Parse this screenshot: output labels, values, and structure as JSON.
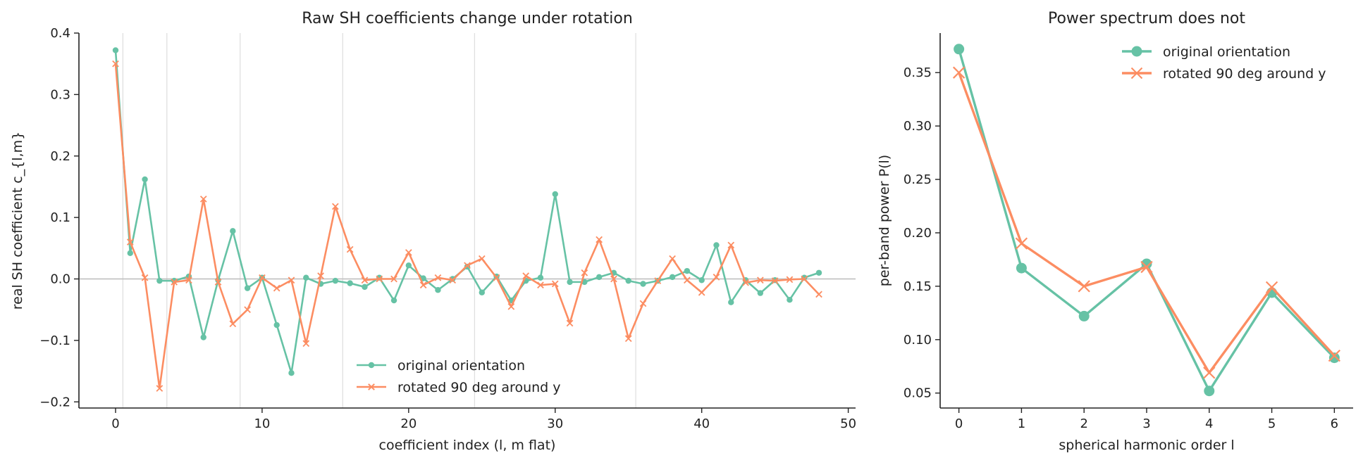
{
  "colors": {
    "original": "#66c2a5",
    "rotated": "#fc8d62",
    "zero_line": "#bbbbbb",
    "band_line": "#e0e0e0",
    "axis": "#222222"
  },
  "chart_data": [
    {
      "type": "line",
      "title": "Raw SH coefficients change under rotation",
      "xlabel": "coefficient index (l, m flat)",
      "ylabel": "real SH coefficient c_{l,m}",
      "xlim": [
        -2.5,
        50.5
      ],
      "ylim": [
        -0.21,
        0.4
      ],
      "xticks": [
        0,
        10,
        20,
        30,
        40,
        50
      ],
      "xtick_labels": [
        "0",
        "10",
        "20",
        "30",
        "40",
        "50"
      ],
      "yticks": [
        -0.2,
        -0.1,
        0.0,
        0.1,
        0.2,
        0.3,
        0.4
      ],
      "ytick_labels": [
        "−0.2",
        "−0.1",
        "0.0",
        "0.1",
        "0.2",
        "0.3",
        "0.4"
      ],
      "band_boundaries": [
        0.5,
        3.5,
        8.5,
        15.5,
        24.5,
        35.5
      ],
      "zero_line": true,
      "legend_position": "bottom-center",
      "series": [
        {
          "name": "original orientation",
          "marker": "circle",
          "x": [
            0,
            1,
            2,
            3,
            4,
            5,
            6,
            7,
            8,
            9,
            10,
            11,
            12,
            13,
            14,
            15,
            16,
            17,
            18,
            19,
            20,
            21,
            22,
            23,
            24,
            25,
            26,
            27,
            28,
            29,
            30,
            31,
            32,
            33,
            34,
            35,
            36,
            37,
            38,
            39,
            40,
            41,
            42,
            43,
            44,
            45,
            46,
            47,
            48
          ],
          "values": [
            0.372,
            0.042,
            0.162,
            -0.003,
            -0.003,
            0.004,
            -0.095,
            -0.002,
            0.078,
            -0.015,
            0.002,
            -0.075,
            -0.153,
            0.002,
            -0.008,
            -0.003,
            -0.007,
            -0.013,
            0.002,
            -0.035,
            0.022,
            0.001,
            -0.018,
            0.0,
            0.02,
            -0.022,
            0.004,
            -0.035,
            -0.003,
            0.002,
            0.138,
            -0.005,
            -0.005,
            0.003,
            0.01,
            -0.003,
            -0.008,
            -0.003,
            0.003,
            0.013,
            -0.002,
            0.055,
            -0.038,
            -0.002,
            -0.023,
            -0.002,
            -0.034,
            0.002,
            0.01
          ]
        },
        {
          "name": "rotated 90 deg around y",
          "marker": "x",
          "x": [
            0,
            1,
            2,
            3,
            4,
            5,
            6,
            7,
            8,
            9,
            10,
            11,
            12,
            13,
            14,
            15,
            16,
            17,
            18,
            19,
            20,
            21,
            22,
            23,
            24,
            25,
            26,
            27,
            28,
            29,
            30,
            31,
            32,
            33,
            34,
            35,
            36,
            37,
            38,
            39,
            40,
            41,
            42,
            43,
            44,
            45,
            46,
            47,
            48
          ],
          "values": [
            0.35,
            0.06,
            0.002,
            -0.178,
            -0.005,
            -0.002,
            0.13,
            -0.005,
            -0.073,
            -0.05,
            0.002,
            -0.015,
            -0.002,
            -0.105,
            0.005,
            0.118,
            0.048,
            -0.002,
            0.0,
            0.0,
            0.043,
            -0.01,
            0.002,
            -0.002,
            0.022,
            0.033,
            0.002,
            -0.045,
            0.005,
            -0.01,
            -0.008,
            -0.072,
            0.01,
            0.064,
            0.0,
            -0.097,
            -0.04,
            -0.003,
            0.033,
            -0.002,
            -0.022,
            0.003,
            0.055,
            -0.006,
            -0.002,
            -0.003,
            -0.001,
            0.0,
            -0.025
          ]
        }
      ]
    },
    {
      "type": "line",
      "title": "Power spectrum does not",
      "xlabel": "spherical harmonic order l",
      "ylabel": "per-band power P(l)",
      "xlim": [
        -0.3,
        6.3
      ],
      "ylim": [
        0.036,
        0.387
      ],
      "xticks": [
        0,
        1,
        2,
        3,
        4,
        5,
        6
      ],
      "xtick_labels": [
        "0",
        "1",
        "2",
        "3",
        "4",
        "5",
        "6"
      ],
      "yticks": [
        0.05,
        0.1,
        0.15,
        0.2,
        0.25,
        0.3,
        0.35
      ],
      "ytick_labels": [
        "0.05",
        "0.10",
        "0.15",
        "0.20",
        "0.25",
        "0.30",
        "0.35"
      ],
      "legend_position": "top-right",
      "series": [
        {
          "name": "original orientation",
          "marker": "circle",
          "x": [
            0,
            1,
            2,
            3,
            4,
            5,
            6
          ],
          "values": [
            0.372,
            0.167,
            0.122,
            0.171,
            0.052,
            0.144,
            0.083
          ]
        },
        {
          "name": "rotated 90 deg around y",
          "marker": "x",
          "x": [
            0,
            1,
            2,
            3,
            4,
            5,
            6
          ],
          "values": [
            0.35,
            0.19,
            0.15,
            0.168,
            0.069,
            0.149,
            0.085
          ]
        }
      ]
    }
  ]
}
